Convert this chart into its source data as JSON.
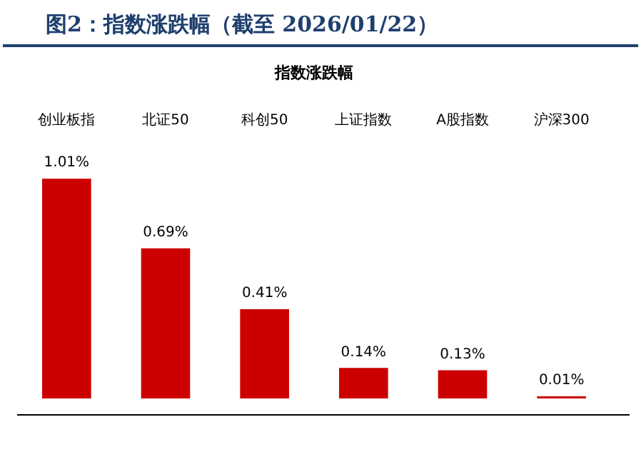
{
  "chart_data": {
    "type": "bar",
    "title": "图2：指数涨跌幅（截至 2026/01/22）",
    "subtitle": "指数涨跌幅",
    "categories": [
      "创业板指",
      "北证50",
      "科创50",
      "上证指数",
      "A股指数",
      "沪深300"
    ],
    "values": [
      1.01,
      0.69,
      0.41,
      0.14,
      0.13,
      0.01
    ],
    "value_labels": [
      "1.01%",
      "0.69%",
      "0.41%",
      "0.14%",
      "0.13%",
      "0.01%"
    ],
    "color": "#cc0000",
    "grid": false,
    "legend": false
  }
}
